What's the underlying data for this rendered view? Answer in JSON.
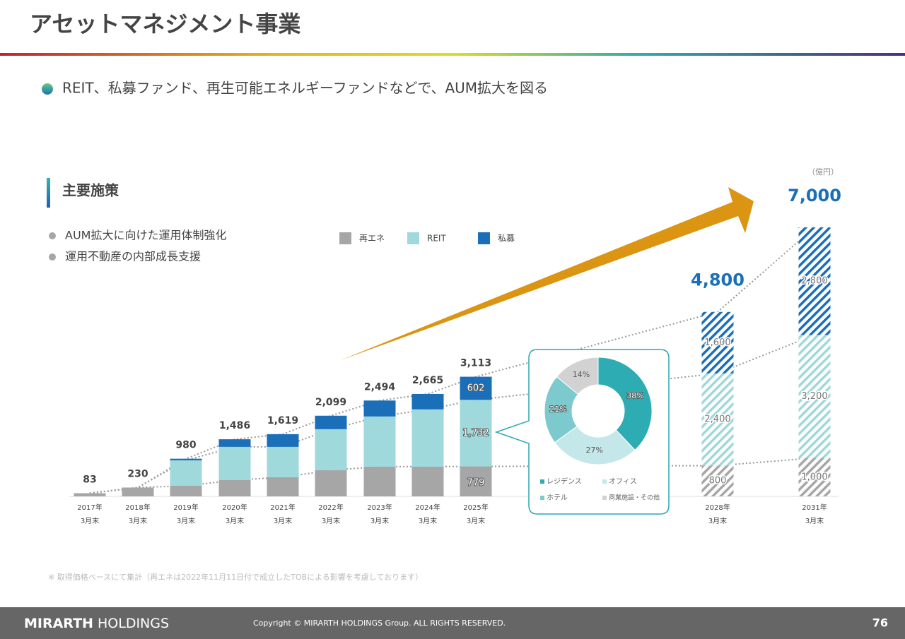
{
  "header": {
    "title": "アセットマネジメント事業",
    "subtitle": "REIT、私募ファンド、再生可能エネルギーファンドなどで、AUM拡大を図る"
  },
  "section": {
    "heading": "主要施策",
    "bullets": [
      "AUM拡大に向けた運用体制強化",
      "運用不動産の内部成長支援"
    ]
  },
  "chart_data": [
    {
      "type": "bar",
      "stacked": true,
      "unit": "（億円）",
      "categories": [
        [
          "2017年",
          "3月末"
        ],
        [
          "2018年",
          "3月末"
        ],
        [
          "2019年",
          "3月末"
        ],
        [
          "2020年",
          "3月末"
        ],
        [
          "2021年",
          "3月末"
        ],
        [
          "2022年",
          "3月末"
        ],
        [
          "2023年",
          "3月末"
        ],
        [
          "2024年",
          "3月末"
        ],
        [
          "2025年",
          "3月末"
        ],
        [
          "2028年",
          "3月末"
        ],
        [
          "2031年",
          "3月末"
        ]
      ],
      "series": [
        {
          "name": "再エネ",
          "color": "#a6a6a6",
          "values": [
            83,
            230,
            276,
            423,
            497,
            681,
            773,
            773,
            779,
            800,
            1000
          ],
          "value_labels": [
            null,
            null,
            null,
            null,
            null,
            null,
            null,
            null,
            "779",
            "800",
            "1,000"
          ]
        },
        {
          "name": "REIT",
          "color": "#9fd9dc",
          "values": [
            0,
            0,
            662,
            865,
            791,
            1067,
            1306,
            1490,
            1732,
            2400,
            3200
          ],
          "value_labels": [
            null,
            null,
            null,
            null,
            null,
            null,
            null,
            null,
            "1,732",
            "2,400",
            "3,200"
          ]
        },
        {
          "name": "私募",
          "color": "#1a6fb8",
          "values": [
            0,
            0,
            42,
            198,
            331,
            351,
            415,
            402,
            602,
            1600,
            2800
          ],
          "value_labels": [
            null,
            null,
            null,
            null,
            null,
            null,
            null,
            null,
            "602",
            "1,600",
            "2,800"
          ]
        }
      ],
      "totals": [
        83,
        230,
        980,
        1486,
        1619,
        2099,
        2494,
        2665,
        3113,
        4800,
        7000
      ],
      "total_labels": [
        "83",
        "230",
        "980",
        "1,486",
        "1,619",
        "2,099",
        "2,494",
        "2,665",
        "3,113",
        "4,800",
        "7,000"
      ],
      "hatched": [
        false,
        false,
        false,
        false,
        false,
        false,
        false,
        false,
        false,
        true,
        true
      ],
      "ylim": [
        0,
        7000
      ]
    },
    {
      "type": "pie",
      "donut": true,
      "categories": [
        "レジデンス",
        "オフィス",
        "ホテル",
        "商業施設・その他"
      ],
      "values": [
        38,
        27,
        21,
        14
      ],
      "value_labels": [
        "38%",
        "27%",
        "21%",
        "14%"
      ],
      "colors": [
        "#2eacb3",
        "#c4e8ea",
        "#7ccacd",
        "#d2d2d2"
      ]
    }
  ],
  "footnote": "※  取得価格ベースにて集計（再エネは2022年11月11日付で成立したTOBによる影響を考慮しております）",
  "footer": {
    "brand": [
      "MIRARTH",
      "HOLDINGS"
    ],
    "copyright": "Copyright © MIRARTH HOLDINGS Group. ALL RIGHTS RESERVED.",
    "page": "76"
  }
}
